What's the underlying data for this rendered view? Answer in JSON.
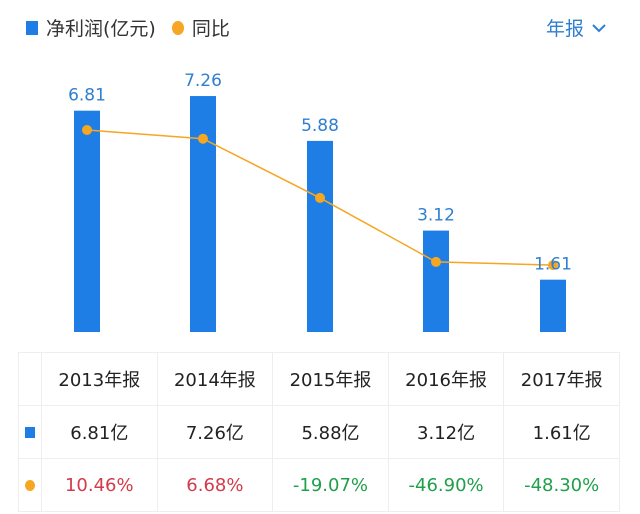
{
  "legend": {
    "bar_label": "净利润(亿元)",
    "line_label": "同比"
  },
  "period_selector": {
    "label": "年报"
  },
  "colors": {
    "bar": "#1e7ee6",
    "line": "#f5a623",
    "positive": "#d43a4a",
    "negative": "#1fa04a",
    "value_label": "#2f7fd0"
  },
  "chart_data": {
    "type": "bar+line",
    "categories": [
      "2013年报",
      "2014年报",
      "2015年报",
      "2016年报",
      "2017年报"
    ],
    "series": [
      {
        "name": "净利润(亿元)",
        "type": "bar",
        "values": [
          6.81,
          7.26,
          5.88,
          3.12,
          1.61
        ],
        "labels": [
          "6.81",
          "7.26",
          "5.88",
          "3.12",
          "1.61"
        ]
      },
      {
        "name": "同比",
        "type": "line",
        "values": [
          10.46,
          6.68,
          -19.07,
          -46.9,
          -48.3
        ]
      }
    ]
  },
  "table": {
    "headers": [
      "2013年报",
      "2014年报",
      "2015年报",
      "2016年报",
      "2017年报"
    ],
    "profit_row": [
      "6.81亿",
      "7.26亿",
      "5.88亿",
      "3.12亿",
      "1.61亿"
    ],
    "yoy_row": [
      "10.46%",
      "6.68%",
      "-19.07%",
      "-46.90%",
      "-48.30%"
    ]
  }
}
